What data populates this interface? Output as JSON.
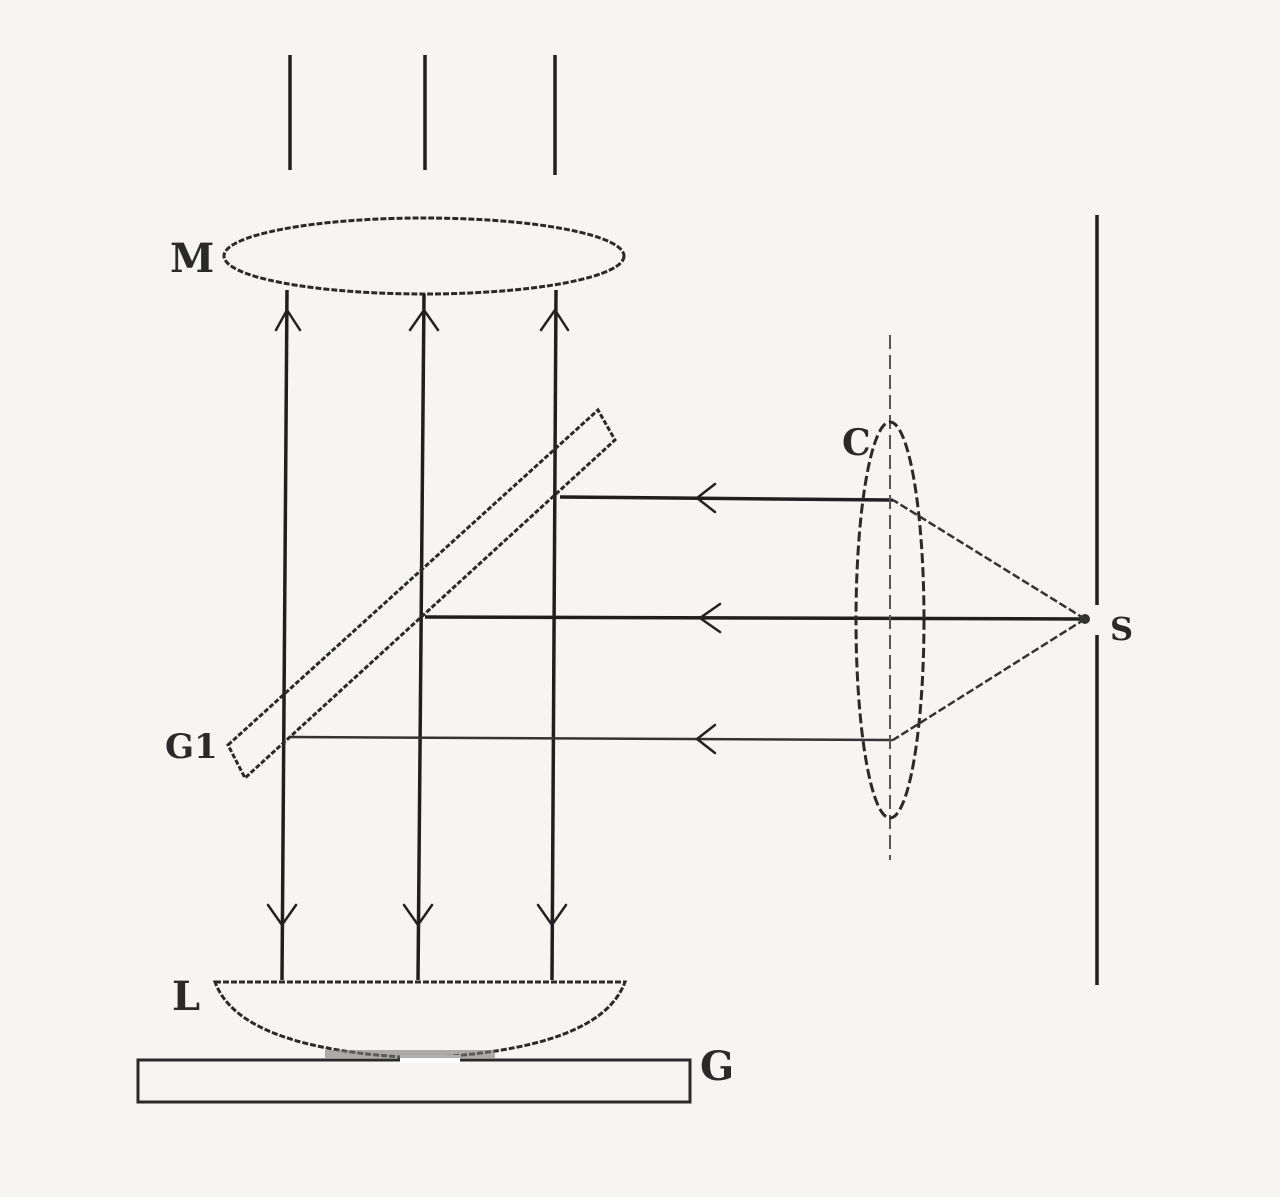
{
  "labels": {
    "mirror": "M",
    "plate": "G1",
    "lens_l": "L",
    "glass": "G",
    "lens_c": "C",
    "source": "S"
  }
}
